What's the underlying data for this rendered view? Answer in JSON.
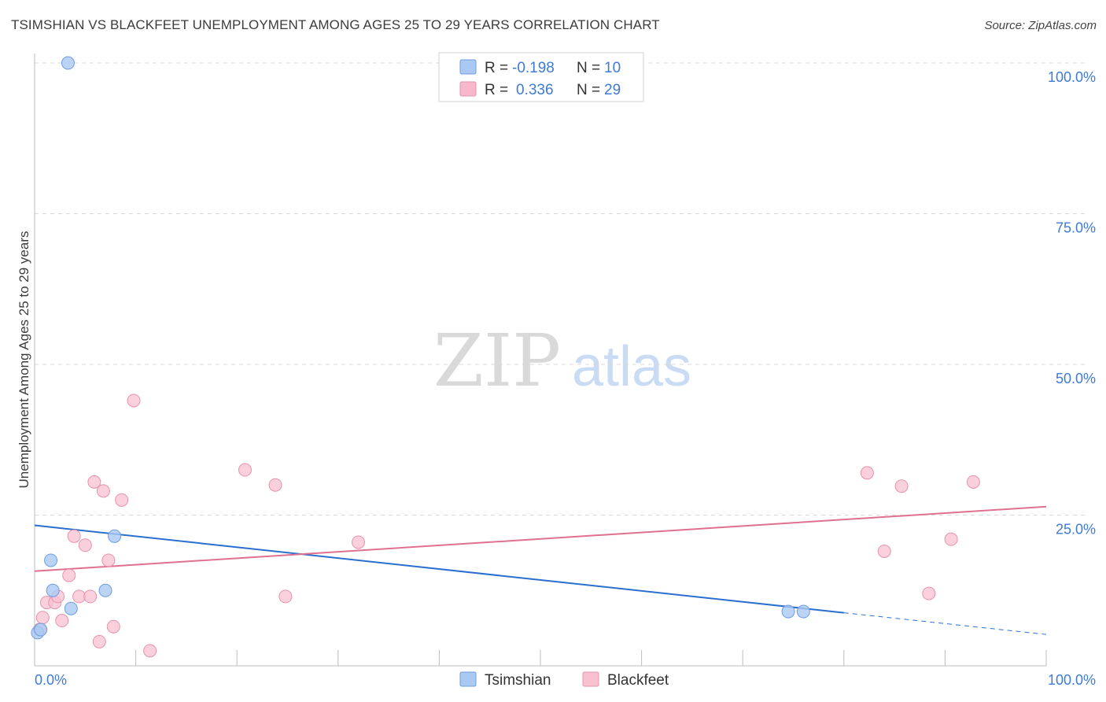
{
  "title": "TSIMSHIAN VS BLACKFEET UNEMPLOYMENT AMONG AGES 25 TO 29 YEARS CORRELATION CHART",
  "source": "Source: ZipAtlas.com",
  "watermark": {
    "zip": "ZIP",
    "atlas": "atlas"
  },
  "legend_top": [
    {
      "r_label": "R =",
      "r_value": "-0.198",
      "n_label": "N =",
      "n_value": "10",
      "color": "#a9c8f4"
    },
    {
      "r_label": "R =",
      "r_value": "0.336",
      "n_label": "N =",
      "n_value": "29",
      "color": "#f7b8cb"
    }
  ],
  "colors": {
    "tsimshian_fill": "#aac9f2",
    "tsimshian_stroke": "#6f9ce0",
    "tsimshian_line": "#2a6fd0",
    "blackfeet_fill": "#f8c0d0",
    "blackfeet_stroke": "#e693ad",
    "blackfeet_line": "#e0708f",
    "axis_text": "#3f7ad4",
    "grid": "#d8d8d8"
  },
  "chart_data": {
    "type": "scatter",
    "title": "TSIMSHIAN VS BLACKFEET UNEMPLOYMENT AMONG AGES 25 TO 29 YEARS CORRELATION CHART",
    "xlabel": "",
    "ylabel": "Unemployment Among Ages 25 to 29 years",
    "xlim": [
      0,
      100
    ],
    "ylim": [
      0,
      100
    ],
    "x_tick_labels": [
      "0.0%",
      "100.0%"
    ],
    "y_tick_labels": [
      "100.0%",
      "75.0%",
      "50.0%",
      "25.0%"
    ],
    "y_ticks": [
      100,
      75,
      50,
      25
    ],
    "grid": true,
    "legend_position": "bottom-center",
    "series": [
      {
        "name": "Tsimshian",
        "points": [
          {
            "x": 0.3,
            "y": 5.5
          },
          {
            "x": 0.6,
            "y": 6.0
          },
          {
            "x": 1.6,
            "y": 17.5
          },
          {
            "x": 1.8,
            "y": 12.5
          },
          {
            "x": 3.3,
            "y": 100
          },
          {
            "x": 3.6,
            "y": 9.5
          },
          {
            "x": 7.0,
            "y": 12.5
          },
          {
            "x": 7.9,
            "y": 21.5
          },
          {
            "x": 74.5,
            "y": 9.0
          },
          {
            "x": 76.0,
            "y": 9.0
          }
        ],
        "trend": {
          "x0": 0,
          "y0": 23.3,
          "x1": 80,
          "y1": 8.8,
          "x_ext": 100,
          "y_ext": 5.2
        }
      },
      {
        "name": "Blackfeet",
        "points": [
          {
            "x": 0.5,
            "y": 6.0
          },
          {
            "x": 0.8,
            "y": 8.0
          },
          {
            "x": 1.2,
            "y": 10.5
          },
          {
            "x": 2.0,
            "y": 10.5
          },
          {
            "x": 2.3,
            "y": 11.5
          },
          {
            "x": 2.7,
            "y": 7.5
          },
          {
            "x": 3.4,
            "y": 15.0
          },
          {
            "x": 3.9,
            "y": 21.5
          },
          {
            "x": 4.4,
            "y": 11.5
          },
          {
            "x": 5.0,
            "y": 20.0
          },
          {
            "x": 5.5,
            "y": 11.5
          },
          {
            "x": 5.9,
            "y": 30.5
          },
          {
            "x": 6.4,
            "y": 4.0
          },
          {
            "x": 6.8,
            "y": 29.0
          },
          {
            "x": 7.3,
            "y": 17.5
          },
          {
            "x": 7.8,
            "y": 6.5
          },
          {
            "x": 8.6,
            "y": 27.5
          },
          {
            "x": 9.8,
            "y": 44.0
          },
          {
            "x": 11.4,
            "y": 2.5
          },
          {
            "x": 20.8,
            "y": 32.5
          },
          {
            "x": 23.8,
            "y": 30.0
          },
          {
            "x": 24.8,
            "y": 11.5
          },
          {
            "x": 32.0,
            "y": 20.5
          },
          {
            "x": 82.3,
            "y": 32.0
          },
          {
            "x": 84.0,
            "y": 19.0
          },
          {
            "x": 85.7,
            "y": 29.8
          },
          {
            "x": 88.4,
            "y": 12.0
          },
          {
            "x": 90.6,
            "y": 21.0
          },
          {
            "x": 92.8,
            "y": 30.5
          }
        ],
        "trend": {
          "x0": 0,
          "y0": 15.7,
          "x1": 100,
          "y1": 26.4
        }
      }
    ]
  },
  "legend_bottom": [
    {
      "label": "Tsimshian"
    },
    {
      "label": "Blackfeet"
    }
  ]
}
